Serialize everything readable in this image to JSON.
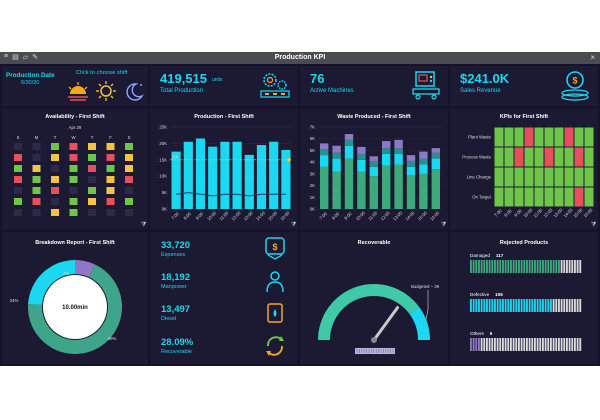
{
  "window": {
    "title": "Production KPI"
  },
  "header": {
    "production_date_label": "Production Date",
    "production_date": "6/30/20",
    "shift_prompt": "Click to choose shift",
    "total_production_value": "419,515",
    "total_production_unit": "units",
    "total_production_label": "Total Production",
    "active_machines_value": "76",
    "active_machines_label": "Active Machines",
    "sales_revenue_value": "$241.0K",
    "sales_revenue_label": "Sales Revenue"
  },
  "availability": {
    "title": "Availability - First Shift",
    "month": "Apr 29",
    "weekdays": [
      "S",
      "M",
      "T",
      "W",
      "T",
      "F",
      "S"
    ],
    "colors": {
      "green": "#6ec54a",
      "red": "#e84f5d",
      "yellow": "#f5c342",
      "empty": "#2d2a48"
    },
    "cells": [
      "e",
      "e",
      "g",
      "r",
      "y",
      "y",
      "g",
      "r",
      "e",
      "y",
      "r",
      "g",
      "r",
      "y",
      "g",
      "y",
      "e",
      "g",
      "r",
      "g",
      "y",
      "r",
      "g",
      "y",
      "g",
      "e",
      "y",
      "r",
      "e",
      "g",
      "r",
      "e",
      "g",
      "y",
      "e",
      "g",
      "r",
      "e",
      "g",
      "y",
      "r",
      "g",
      "e",
      "e",
      "y",
      "g",
      "e",
      "e",
      "e"
    ]
  },
  "production": {
    "title": "Production - First Shift",
    "chart_data": {
      "type": "bar",
      "categories": [
        "7:00",
        "8:00",
        "9:00",
        "10:00",
        "11:00",
        "12:00",
        "13:00",
        "14:00",
        "15:00",
        "16:00"
      ],
      "values": [
        17.5,
        20.5,
        21.5,
        19,
        20.5,
        20.5,
        16.5,
        19.5,
        20.5,
        18
      ],
      "line": [
        4.5,
        5,
        4.5,
        4,
        4.5,
        4.5,
        4,
        4.5,
        4.5,
        4.5
      ],
      "target": 15,
      "target_label": "15K",
      "yticks": [
        "0K",
        "5K",
        "10K",
        "15K",
        "20K",
        "25K"
      ],
      "ylim": [
        0,
        25
      ]
    }
  },
  "waste": {
    "title": "Waste Produced - First Shift",
    "chart_data": {
      "type": "bar",
      "categories": [
        "7:00",
        "8:00",
        "9:00",
        "10:00",
        "11:00",
        "12:00",
        "13:00",
        "14:00",
        "15:00",
        "16:00"
      ],
      "series": [
        {
          "values": [
            3.6,
            3.2,
            4.3,
            3.2,
            2.8,
            3.7,
            3.8,
            2.9,
            3.0,
            3.4
          ]
        },
        {
          "values": [
            1.0,
            1.1,
            1.1,
            1.0,
            0.8,
            1.0,
            0.9,
            0.7,
            0.8,
            0.9
          ]
        },
        {
          "values": [
            0.5,
            0.5,
            0.5,
            0.5,
            0.5,
            0.5,
            0.5,
            0.5,
            0.5,
            0.5
          ]
        },
        {
          "values": [
            0.5,
            0.6,
            0.5,
            0.6,
            0.4,
            0.6,
            0.7,
            0.5,
            0.6,
            0.4
          ]
        }
      ],
      "colors": [
        "#3daa7c",
        "#19d8f0",
        "#2b8f8f",
        "#8e77c4"
      ],
      "yticks": [
        "0K",
        "1K",
        "2K",
        "3K",
        "4K",
        "5K",
        "6K",
        "7K"
      ],
      "ylim": [
        0,
        7
      ]
    }
  },
  "kpis": {
    "title": "KPIs for First Shift",
    "rows": [
      "Plant Waste",
      "Process Waste",
      "Line Change",
      "On Target"
    ],
    "cols": [
      "7:00",
      "8:00",
      "9:00",
      "10:00",
      "11:00",
      "12:00",
      "13:00",
      "14:00",
      "15:00",
      "16:00"
    ],
    "grid": [
      "gggrgggrgg",
      "ggrggrggrg",
      "gggggggggg",
      "ggggggggrg"
    ]
  },
  "breakdown": {
    "title": "Breakdown Report - First Shift",
    "center": "10.00min",
    "chart_data": {
      "type": "pie",
      "labels": [
        "",
        "",
        ""
      ],
      "values": [
        69,
        24,
        7
      ],
      "pct_labels": [
        "69%",
        "24%",
        "7%"
      ],
      "colors": [
        "#3fa58a",
        "#19d8f0",
        "#8e77c4"
      ]
    }
  },
  "stats": [
    {
      "value": "33,720",
      "label": "Expenses",
      "icon": "money-hand-icon"
    },
    {
      "value": "18,192",
      "label": "Manpower",
      "icon": "person-icon"
    },
    {
      "value": "13,497",
      "label": "Diesel",
      "icon": "fuel-can-icon"
    },
    {
      "value": "28.09%",
      "label": "Recoverable",
      "icon": "recycle-icon"
    }
  ],
  "recoverable": {
    "title": "Recoverable",
    "budget_label": "Budgeted – 39",
    "value": 0.8
  },
  "rejected": {
    "title": "Rejected Products",
    "items": [
      {
        "label": "Damaged",
        "value": "117",
        "fill": 0.82,
        "color": "#3daa7c"
      },
      {
        "label": "Defective",
        "value": "106",
        "fill": 0.74,
        "color": "#19d8f0"
      },
      {
        "label": "Others",
        "value": "5",
        "fill": 0.1,
        "color": "#8e77c4"
      }
    ]
  }
}
